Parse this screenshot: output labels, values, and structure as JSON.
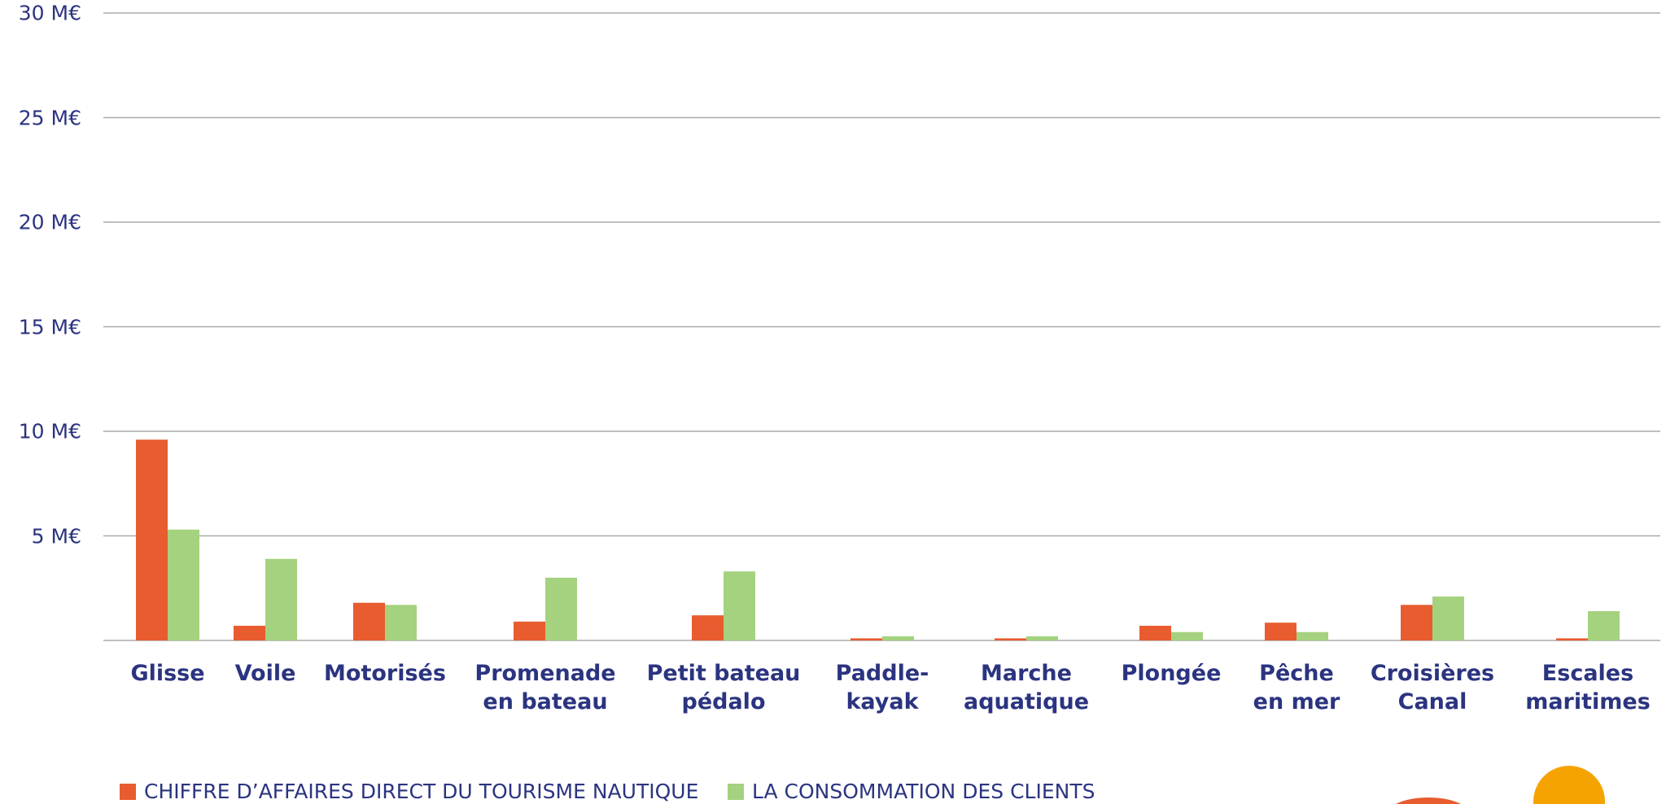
{
  "chart_data": {
    "type": "bar",
    "categories": [
      "Glisse",
      "Voile",
      "Motorisés",
      "Promenade\nen bateau",
      "Petit bateau\npédalo",
      "Paddle-\nkayak",
      "Marche\naquatique",
      "Plongée",
      "Pêche\nen mer",
      "Croisières\nCanal",
      "Escales\nmaritimes"
    ],
    "series": [
      {
        "name": "CHIFFRE D’AFFAIRES DIRECT DU TOURISME NAUTIQUE",
        "color": "#e85c2f",
        "values": [
          9.6,
          0.7,
          1.8,
          0.9,
          1.2,
          0.1,
          0.1,
          0.7,
          0.85,
          1.7,
          0.1
        ]
      },
      {
        "name": "LA CONSOMMATION DES CLIENTS",
        "color": "#a5d27f",
        "values": [
          5.3,
          3.9,
          1.7,
          3.0,
          3.3,
          0.2,
          0.2,
          0.4,
          0.4,
          2.1,
          1.4
        ]
      }
    ],
    "ylim": [
      0,
      30
    ],
    "yticks": [
      {
        "value": 5,
        "label": "5 M€"
      },
      {
        "value": 10,
        "label": "10 M€"
      },
      {
        "value": 15,
        "label": "15 M€"
      },
      {
        "value": 20,
        "label": "20 M€"
      },
      {
        "value": 25,
        "label": "25 M€"
      },
      {
        "value": 30,
        "label": "30 M€"
      }
    ],
    "grid": true,
    "legend": "bottom-left"
  }
}
